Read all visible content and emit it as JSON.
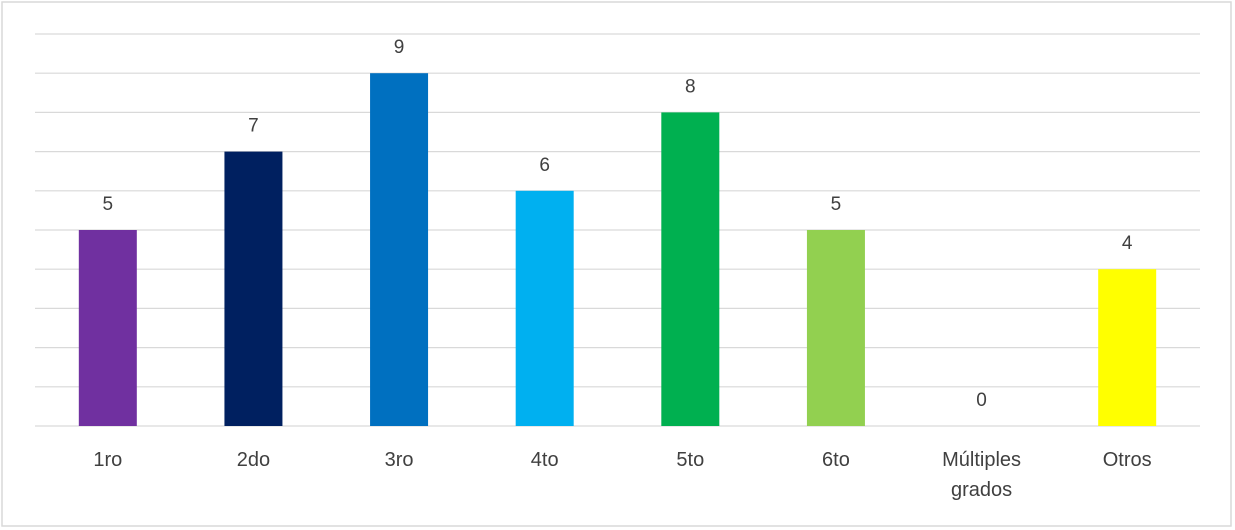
{
  "chart_data": {
    "type": "bar",
    "categories": [
      "1ro",
      "2do",
      "3ro",
      "4to",
      "5to",
      "6to",
      "Múltiples grados",
      "Otros"
    ],
    "values": [
      5,
      7,
      9,
      6,
      8,
      5,
      0,
      4
    ],
    "colors": [
      "#7030a0",
      "#002060",
      "#0070c0",
      "#00b0f0",
      "#00b050",
      "#92d050",
      "#ff0000",
      "#ffff00"
    ],
    "ylim": [
      0,
      10
    ],
    "yticks": [
      0,
      1,
      2,
      3,
      4,
      5,
      6,
      7,
      8,
      9,
      10
    ],
    "grid": true
  }
}
